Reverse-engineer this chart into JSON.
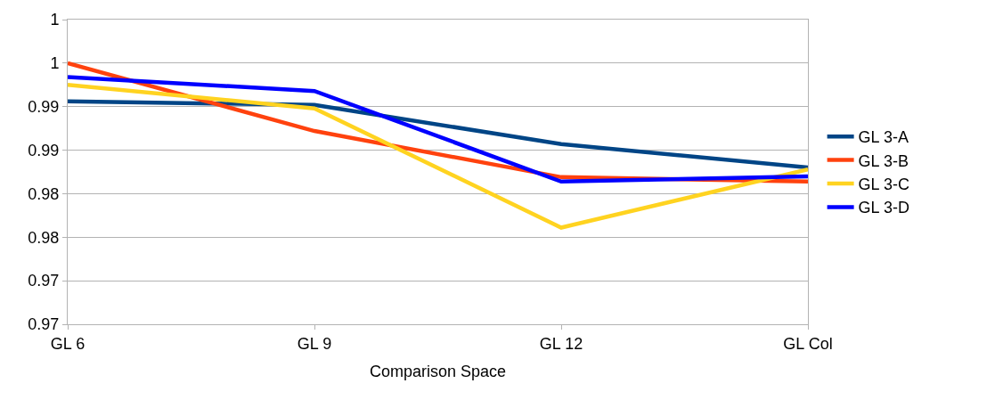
{
  "chart_data": {
    "type": "line",
    "xlabel": "Comparison Space",
    "categories": [
      "GL 6",
      "GL 9",
      "GL 12",
      "GL Col"
    ],
    "series": [
      {
        "name": "GL 3-A",
        "color": "#004586",
        "values": [
          0.9906,
          0.9902,
          0.9857,
          0.983
        ]
      },
      {
        "name": "GL 3-B",
        "color": "#ff420e",
        "values": [
          0.995,
          0.9872,
          0.9819,
          0.9814
        ]
      },
      {
        "name": "GL 3-C",
        "color": "#ffd320",
        "values": [
          0.9925,
          0.9898,
          0.9761,
          0.9828
        ]
      },
      {
        "name": "GL 3-D",
        "color": "#0000ff",
        "values": [
          0.9934,
          0.9918,
          0.9814,
          0.982
        ]
      }
    ],
    "ylim": [
      0.965,
      1.0
    ],
    "yticks": [
      {
        "value": 0.965,
        "label": "0.97"
      },
      {
        "value": 0.97,
        "label": "0.97"
      },
      {
        "value": 0.975,
        "label": "0.98"
      },
      {
        "value": 0.98,
        "label": "0.98"
      },
      {
        "value": 0.985,
        "label": "0.99"
      },
      {
        "value": 0.99,
        "label": "0.99"
      },
      {
        "value": 0.995,
        "label": "1"
      },
      {
        "value": 1.0,
        "label": "1"
      }
    ],
    "grid": "y",
    "legend": "right",
    "marker": "none",
    "line_style": "solid"
  }
}
